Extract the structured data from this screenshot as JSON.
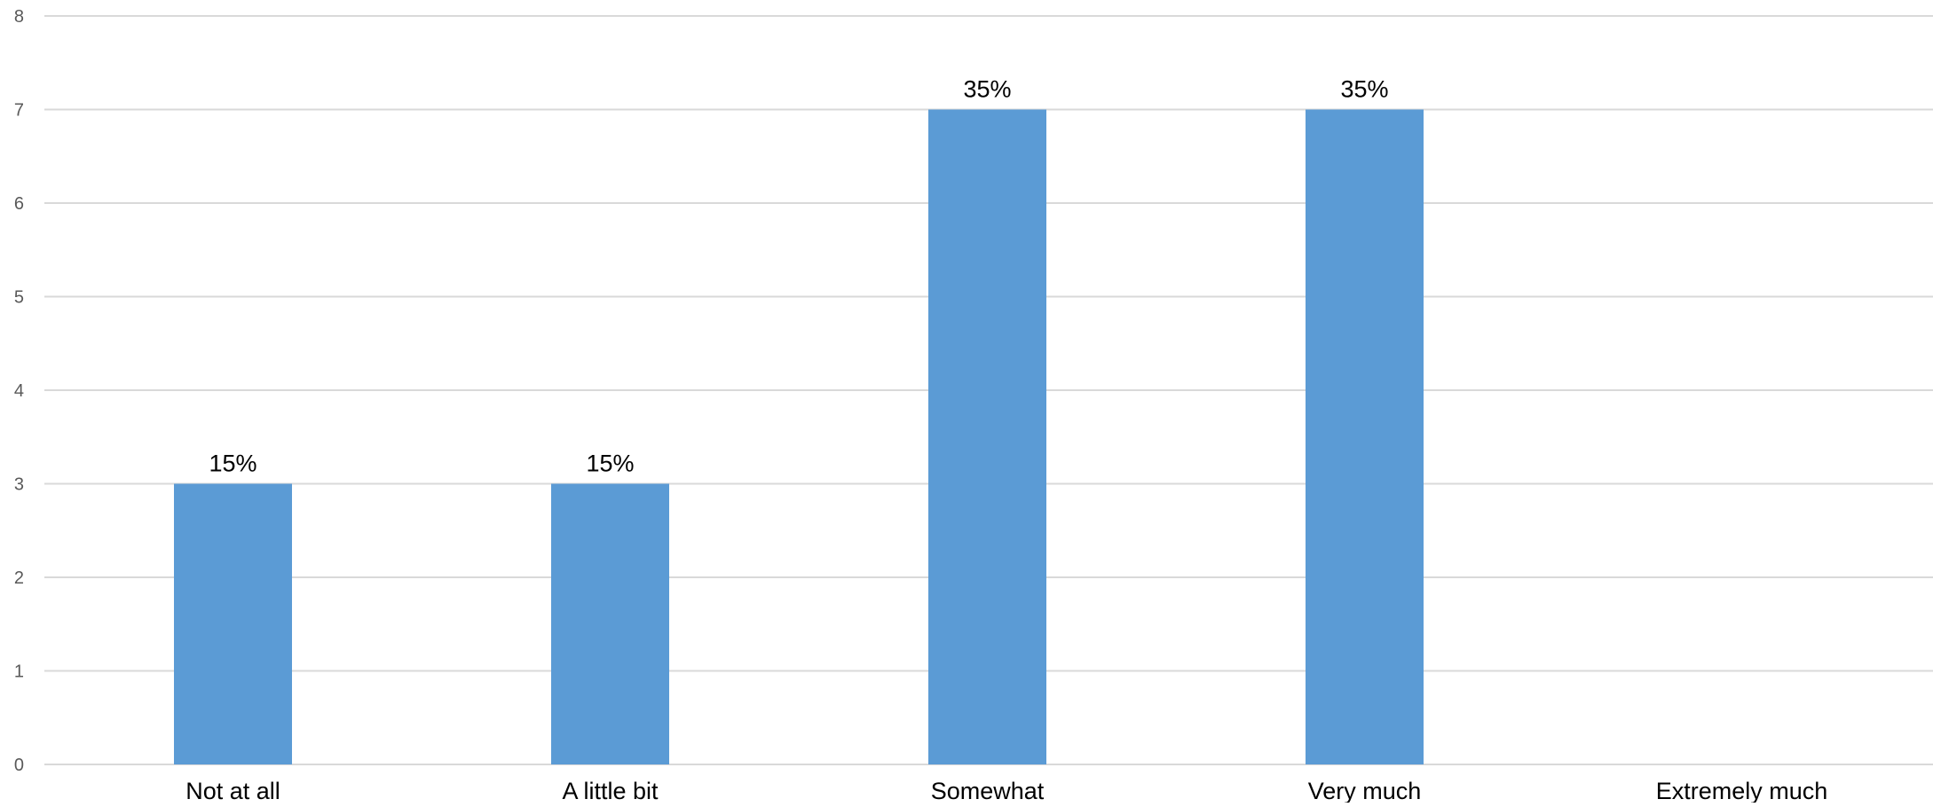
{
  "chart_data": {
    "type": "bar",
    "categories": [
      "Not at all",
      "A little bit",
      "Somewhat",
      "Very much",
      "Extremely much"
    ],
    "values": [
      3,
      3,
      7,
      7,
      0
    ],
    "data_labels": [
      "15%",
      "15%",
      "35%",
      "35%",
      ""
    ],
    "y_ticks": [
      "0",
      "1",
      "2",
      "3",
      "4",
      "5",
      "6",
      "7",
      "8"
    ],
    "ylim": [
      0,
      8
    ],
    "grid": true,
    "legend": "none",
    "title": "",
    "xlabel": "",
    "ylabel": "",
    "colors": {
      "bar": "#5b9bd5",
      "grid": "#d9d9d9",
      "y_tick_text": "#595959",
      "x_tick_text": "#000000",
      "label_text": "#000000"
    }
  }
}
